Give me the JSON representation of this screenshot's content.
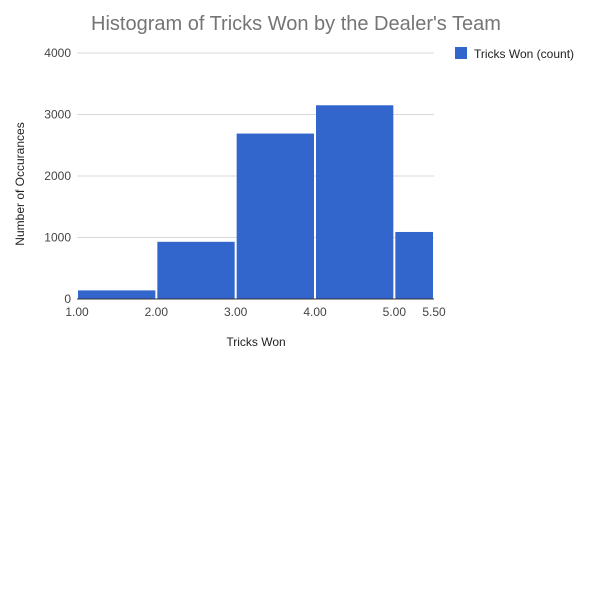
{
  "chart_data": {
    "type": "bar",
    "title": "Histogram of Tricks Won by the Dealer's Team",
    "xlabel": "Tricks Won",
    "ylabel": "Number of Occurances",
    "x_tick_labels": [
      "1.00",
      "2.00",
      "3.00",
      "4.00",
      "5.00",
      "5.50"
    ],
    "x_ticks": [
      1.0,
      2.0,
      3.0,
      4.0,
      5.0,
      5.5
    ],
    "y_tick_labels": [
      "0",
      "1000",
      "2000",
      "3000",
      "4000"
    ],
    "y_ticks": [
      0,
      1000,
      2000,
      3000,
      4000
    ],
    "xlim": [
      1.0,
      5.5
    ],
    "ylim": [
      0,
      4000
    ],
    "grid": true,
    "legend_position": "top-right",
    "colors": {
      "bar": "#3366cc",
      "grid": "#d9d9d9",
      "baseline": "#333333"
    },
    "bins": [
      {
        "x0": 1.0,
        "x1": 2.0,
        "value": 140
      },
      {
        "x0": 2.0,
        "x1": 3.0,
        "value": 930
      },
      {
        "x0": 3.0,
        "x1": 4.0,
        "value": 2690
      },
      {
        "x0": 4.0,
        "x1": 5.0,
        "value": 3150
      },
      {
        "x0": 5.0,
        "x1": 6.0,
        "value": 1090
      }
    ],
    "series": [
      {
        "name": "Tricks Won (count)"
      }
    ]
  }
}
